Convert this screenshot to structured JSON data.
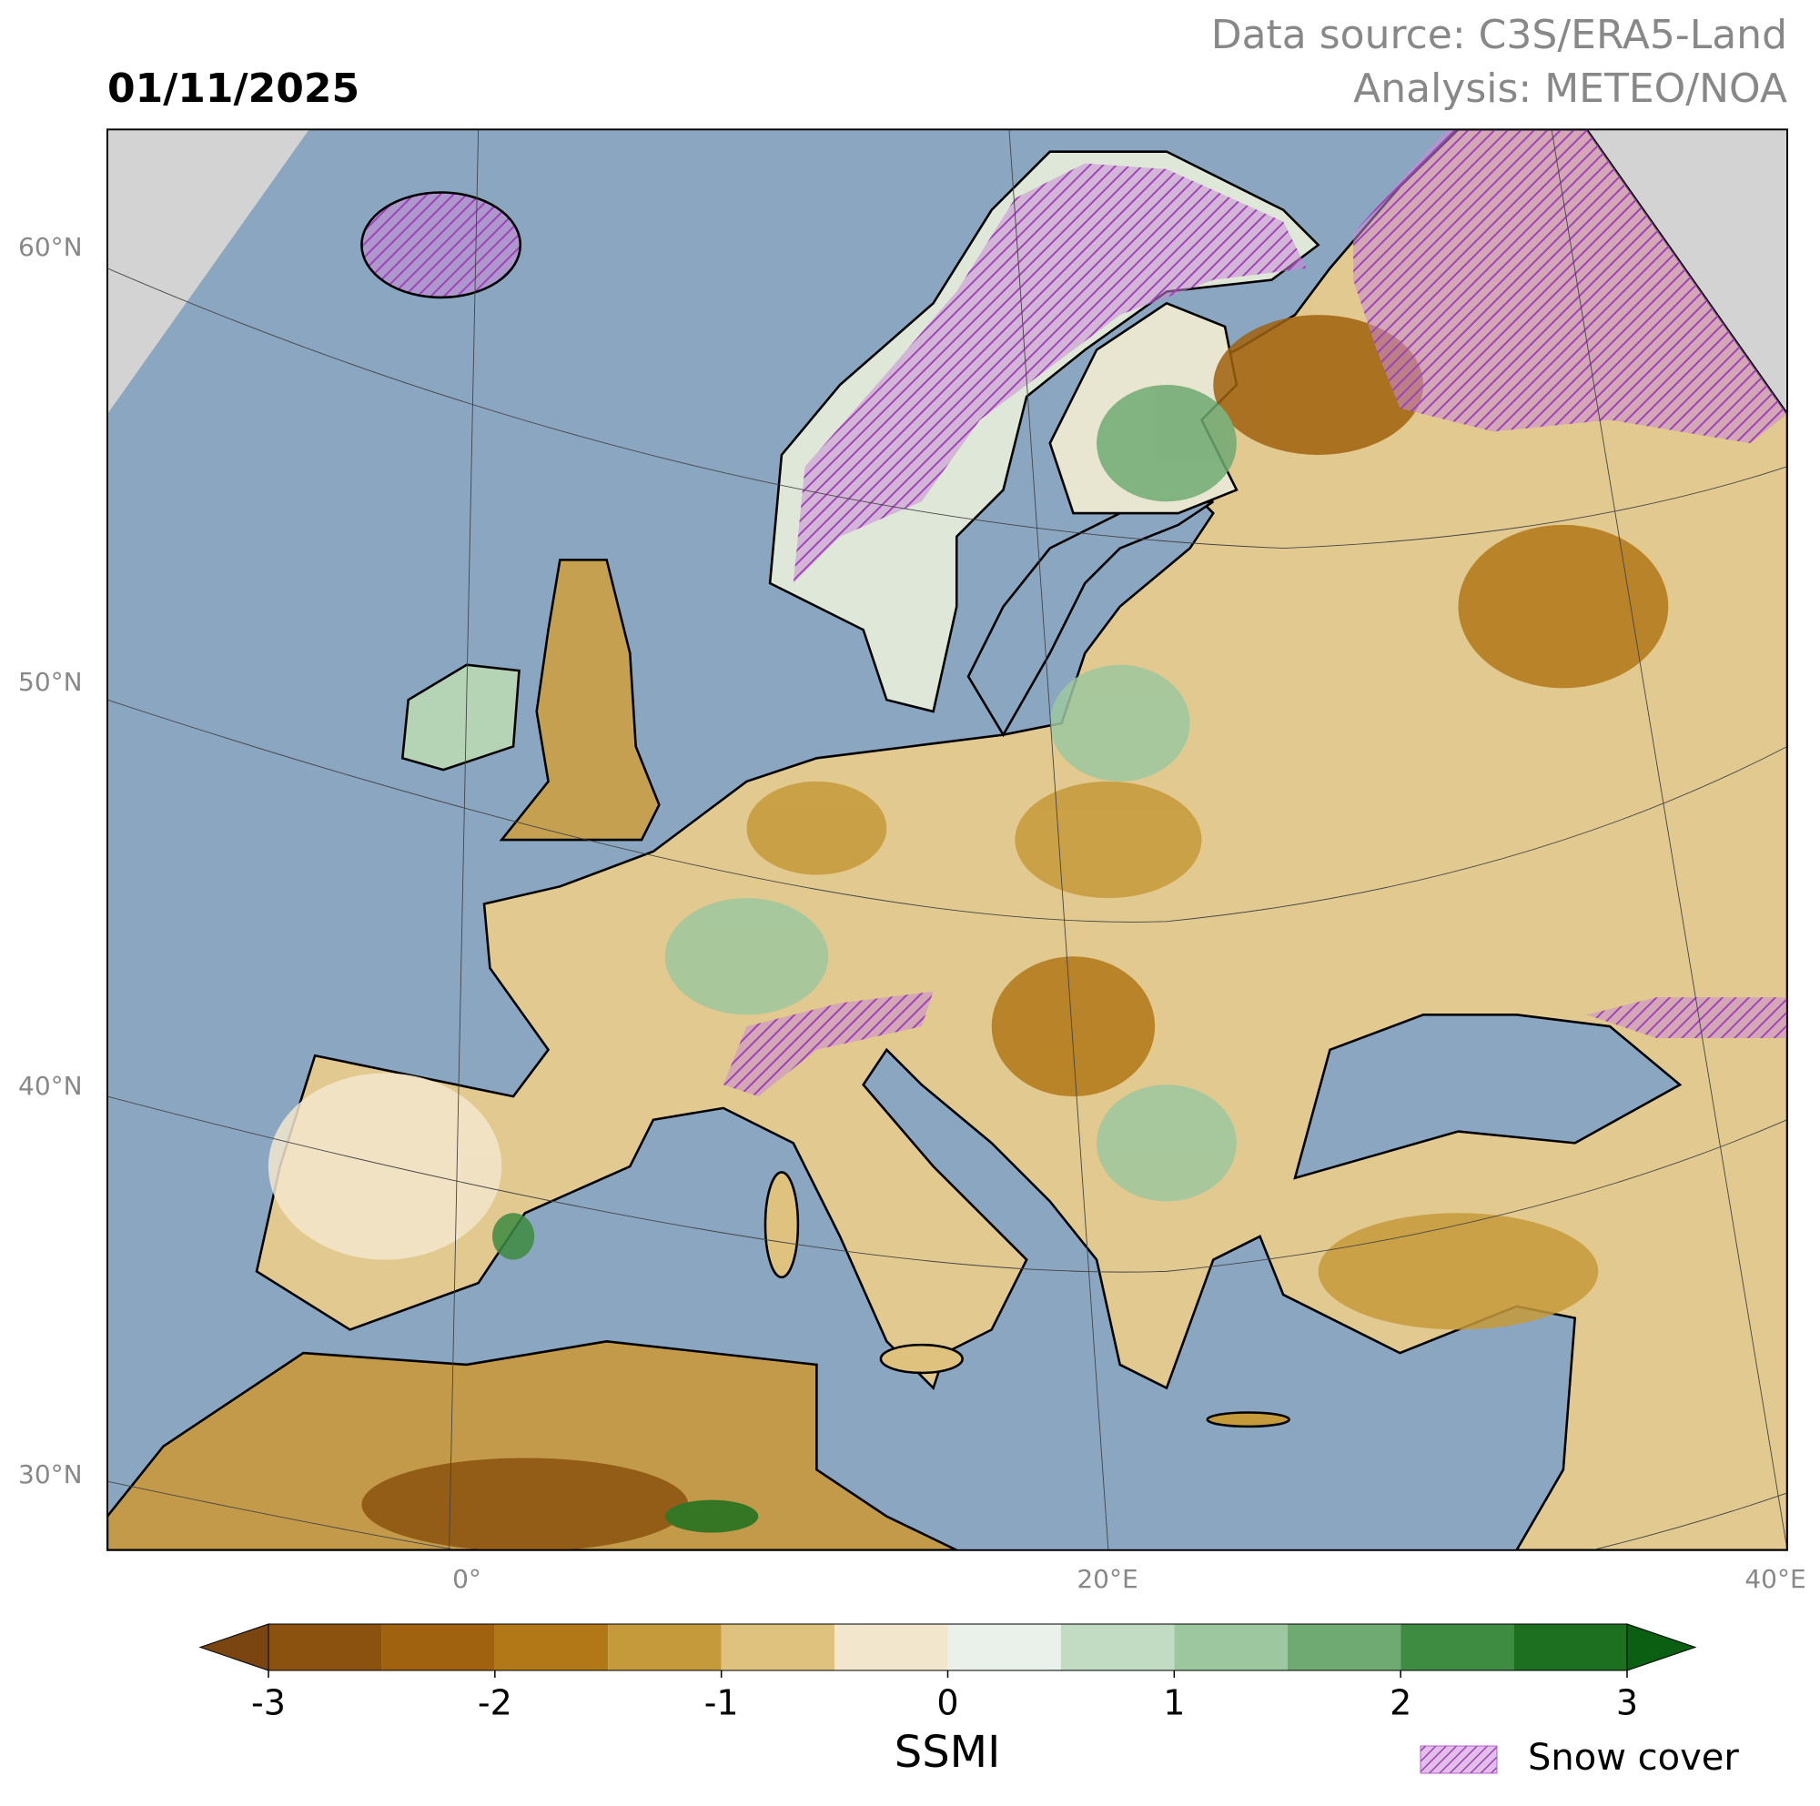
{
  "header": {
    "date": "01/11/2025",
    "source": "Data source: C3S/ERA5-Land",
    "analysis": "Analysis: METEO/NOA"
  },
  "map": {
    "lat_labels": [
      "60°N",
      "50°N",
      "40°N",
      "30°N"
    ],
    "lon_labels": [
      "0°",
      "20°E",
      "40°E"
    ]
  },
  "colorbar": {
    "label": "SSMI",
    "levels": [
      -3,
      -2.5,
      -2,
      -1.5,
      -1,
      -0.5,
      0,
      0.5,
      1,
      1.5,
      2,
      2.5,
      3
    ],
    "ticks": [
      -3,
      -2,
      -1,
      0,
      1,
      2,
      3
    ],
    "colors": [
      "#8b520f",
      "#a0620e",
      "#b27817",
      "#c59a3a",
      "#dfc27d",
      "#f2e6cc",
      "#e9f1ea",
      "#c2dcc3",
      "#9dc89f",
      "#6faa72",
      "#3e8b42",
      "#1c701f"
    ],
    "under_color": "#7a4510",
    "over_color": "#0a5f12"
  },
  "legend": {
    "label": "Snow cover",
    "color": "#b45fc8"
  }
}
